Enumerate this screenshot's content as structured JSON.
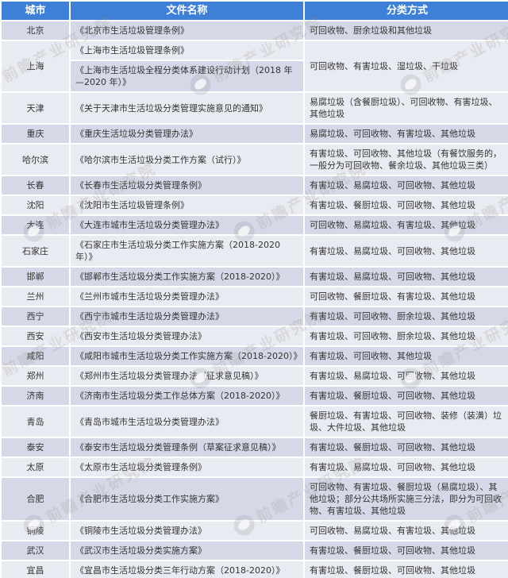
{
  "watermark": {
    "text": "前瞻产业研究院"
  },
  "colors": {
    "header_bg": "#3E7FD7",
    "row_dark": "#D5D9E7",
    "row_light": "#E9EBF3",
    "header_text": "#FFFFFF",
    "body_text": "#333333"
  },
  "table": {
    "columns": [
      {
        "key": "city",
        "label": "城市"
      },
      {
        "key": "document",
        "label": "文件名称"
      },
      {
        "key": "method",
        "label": "分类方式"
      }
    ],
    "rows": [
      {
        "city": "北京",
        "docs": [
          "《北京市生活垃圾管理条例》"
        ],
        "method": "可回收物、厨余垃圾和其他垃圾"
      },
      {
        "city": "上海",
        "docs": [
          "《上海市生活垃圾管理条例》",
          "《上海市生活垃圾全程分类体系建设行动计划（2018 年—2020 年）》"
        ],
        "method": "可回收物、有害垃圾、湿垃圾、干垃圾"
      },
      {
        "city": "天津",
        "docs": [
          "《关于天津市生活垃圾分类管理实施意见的通知》"
        ],
        "method": "易腐垃圾（含餐厨垃圾）、可回收物、有害垃圾、其他垃圾"
      },
      {
        "city": "重庆",
        "docs": [
          "《重庆生活垃圾分类管理办法》"
        ],
        "method": "易腐垃圾、可回收物、有害垃圾、其他垃圾"
      },
      {
        "city": "哈尔滨",
        "docs": [
          "《哈尔滨市生活垃圾分类工作方案（试行）》"
        ],
        "method": "有害垃圾、可回收物、其他垃圾（有餐饮服务的，一般分为可回收物、餐余垃圾、其他垃圾三类）"
      },
      {
        "city": "长春",
        "docs": [
          "《长春市生活垃圾分类管理条例》"
        ],
        "method": "有害垃圾、易腐垃圾、可回收物、其他垃圾"
      },
      {
        "city": "沈阳",
        "docs": [
          "《沈阳市生活垃圾管理条例》"
        ],
        "method": "有害垃圾、餐厨垃圾、可回收物、其他垃圾"
      },
      {
        "city": "大连",
        "docs": [
          "《大连市城市生活垃圾分类管理办法》"
        ],
        "method": "可回收物、易腐垃圾、有害垃圾、其他垃圾"
      },
      {
        "city": "石家庄",
        "docs": [
          "《石家庄市生活垃圾分类工作实施方案（2018-2020 年）》"
        ],
        "method": "有害垃圾、易腐垃圾、可回收物、其他垃圾"
      },
      {
        "city": "邯郸",
        "docs": [
          "《邯郸市生活垃圾分类工作实施方案（2018-2020）》"
        ],
        "method": "有害垃圾、易腐垃圾、可回收物、其他垃圾"
      },
      {
        "city": "兰州",
        "docs": [
          "《兰州市城市生活垃圾分类管理办法》"
        ],
        "method": "可回收物、餐厨垃圾、有害垃圾、其他垃圾"
      },
      {
        "city": "西宁",
        "docs": [
          "《西宁市城市生活垃圾分类管理办法》"
        ],
        "method": "有害垃圾、可回收物、厨余垃圾、其他垃圾"
      },
      {
        "city": "西安",
        "docs": [
          "《西安市生活垃圾分类管理办法》"
        ],
        "method": "有害垃圾、可回收物、厨余垃圾、其他垃圾"
      },
      {
        "city": "咸阳",
        "docs": [
          "《咸阳市城市生活垃圾分类工作实施方案（2018-2020）》"
        ],
        "method": "有害垃圾、可回收物、其他垃圾"
      },
      {
        "city": "郑州",
        "docs": [
          "《郑州市生活垃圾分类管理办法（征求意见稿）》"
        ],
        "method": "有害垃圾、易腐垃圾、可回收物、其他垃圾"
      },
      {
        "city": "济南",
        "docs": [
          "《济南市生活垃圾分类工作总体方案（2018-2020）》"
        ],
        "method": "有害垃圾、餐厨垃圾、可回收物、其他垃圾"
      },
      {
        "city": "青岛",
        "docs": [
          "《青岛市城市生活垃圾分类管理办法》"
        ],
        "method": "餐厨垃圾、有害垃圾、可回收物、装修（装潢）垃圾、大件垃圾、其他垃圾"
      },
      {
        "city": "泰安",
        "docs": [
          "《泰安市生活垃圾分类管理条例（草案征求意见稿）》"
        ],
        "method": "有害垃圾、餐厨垃圾、可回收物、其他垃圾"
      },
      {
        "city": "太原",
        "docs": [
          "《太原市生活垃圾分类管理条例》"
        ],
        "method": "有害垃圾、易腐垃圾、可回收物、其他垃圾"
      },
      {
        "city": "合肥",
        "docs": [
          "《合肥市生活垃圾分类工作实施方案》"
        ],
        "method": "可回收物、有害垃圾、餐厨垃圾（易腐垃圾）、其他垃圾；部分公共场所实施三分法，即分为可回收物、有害垃圾、其他垃圾"
      },
      {
        "city": "铜陵",
        "docs": [
          "《铜陵市生活垃圾分类管理办法》"
        ],
        "method": "可回收物、易腐垃圾、有害垃圾、其他垃圾"
      },
      {
        "city": "武汉",
        "docs": [
          "《武汉市生活垃圾分类实施方案》"
        ],
        "method": "有害垃圾、餐厨垃圾、可回收物、其他垃圾"
      },
      {
        "city": "宜昌",
        "docs": [
          "《宜昌市生活垃圾分类三年行动方案（2018-2020）》"
        ],
        "method": "有害垃圾、餐厨垃圾、可回收物、其他垃圾"
      }
    ]
  }
}
